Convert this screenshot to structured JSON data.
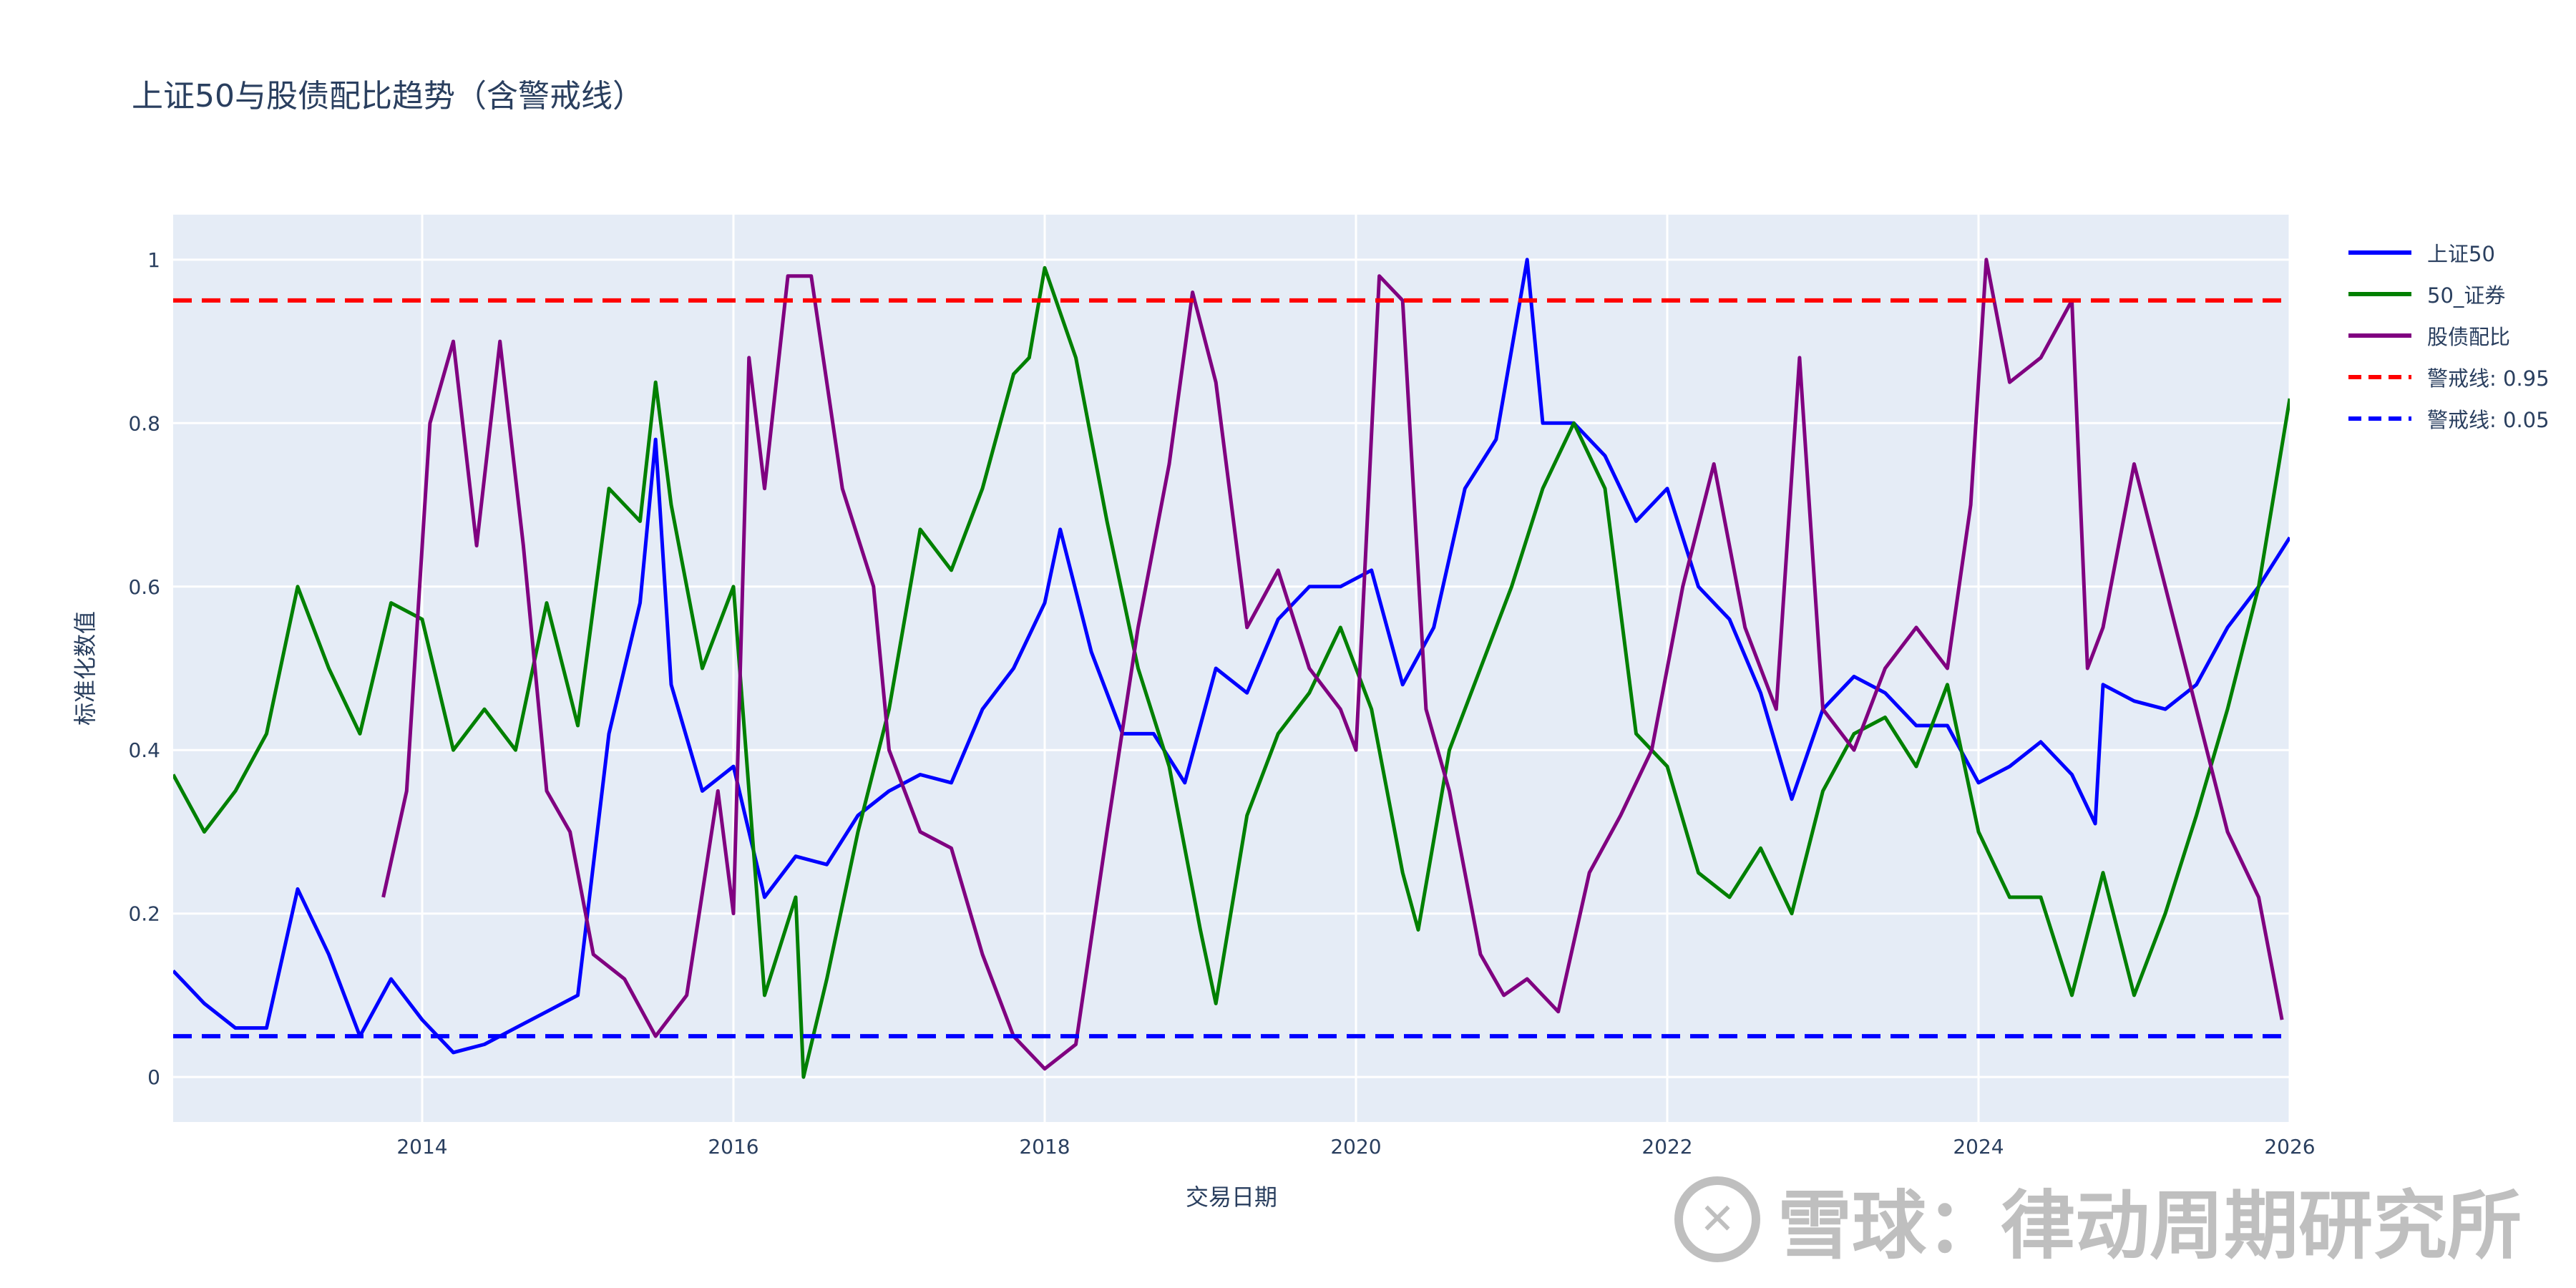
{
  "chart_data": {
    "type": "line",
    "title": "上证50与股债配比趋势（含警戒线）",
    "xlabel": "交易日期",
    "ylabel": "标准化数值",
    "xlim": [
      2012.4,
      2026.0
    ],
    "ylim": [
      -0.055,
      1.055
    ],
    "xticks": [
      2014,
      2016,
      2018,
      2020,
      2022,
      2024,
      2026
    ],
    "yticks": [
      0,
      0.2,
      0.4,
      0.6,
      0.8,
      1
    ],
    "ytick_labels": [
      "0",
      "0.2",
      "0.4",
      "0.6",
      "0.8",
      "1"
    ],
    "grid": true,
    "legend_position": "right",
    "series": [
      {
        "name": "上证50",
        "color": "#0000ff",
        "x": [
          2012.4,
          2012.6,
          2012.8,
          2013.0,
          2013.2,
          2013.4,
          2013.6,
          2013.8,
          2014.0,
          2014.2,
          2014.4,
          2014.6,
          2014.8,
          2015.0,
          2015.2,
          2015.4,
          2015.5,
          2015.6,
          2015.8,
          2016.0,
          2016.2,
          2016.4,
          2016.6,
          2016.8,
          2017.0,
          2017.2,
          2017.4,
          2017.6,
          2017.8,
          2018.0,
          2018.1,
          2018.3,
          2018.5,
          2018.7,
          2018.9,
          2019.1,
          2019.3,
          2019.5,
          2019.7,
          2019.9,
          2020.1,
          2020.3,
          2020.5,
          2020.7,
          2020.9,
          2021.1,
          2021.2,
          2021.4,
          2021.6,
          2021.8,
          2022.0,
          2022.2,
          2022.4,
          2022.6,
          2022.8,
          2023.0,
          2023.2,
          2023.4,
          2023.6,
          2023.8,
          2024.0,
          2024.2,
          2024.4,
          2024.6,
          2024.75,
          2024.8,
          2025.0,
          2025.2,
          2025.4,
          2025.6,
          2025.8,
          2026.0
        ],
        "values": [
          0.13,
          0.09,
          0.06,
          0.06,
          0.23,
          0.15,
          0.05,
          0.12,
          0.07,
          0.03,
          0.04,
          0.06,
          0.08,
          0.1,
          0.42,
          0.58,
          0.78,
          0.48,
          0.35,
          0.38,
          0.22,
          0.27,
          0.26,
          0.32,
          0.35,
          0.37,
          0.36,
          0.45,
          0.5,
          0.58,
          0.67,
          0.52,
          0.42,
          0.42,
          0.36,
          0.5,
          0.47,
          0.56,
          0.6,
          0.6,
          0.62,
          0.48,
          0.55,
          0.72,
          0.78,
          1.0,
          0.8,
          0.8,
          0.76,
          0.68,
          0.72,
          0.6,
          0.56,
          0.47,
          0.34,
          0.45,
          0.49,
          0.47,
          0.43,
          0.43,
          0.36,
          0.38,
          0.41,
          0.37,
          0.31,
          0.48,
          0.46,
          0.45,
          0.48,
          0.55,
          0.6,
          0.66
        ]
      },
      {
        "name": "50_证券",
        "color": "#008000",
        "x": [
          2012.4,
          2012.6,
          2012.8,
          2013.0,
          2013.2,
          2013.4,
          2013.6,
          2013.8,
          2014.0,
          2014.2,
          2014.4,
          2014.6,
          2014.8,
          2015.0,
          2015.2,
          2015.4,
          2015.5,
          2015.6,
          2015.8,
          2016.0,
          2016.2,
          2016.4,
          2016.45,
          2016.6,
          2016.8,
          2017.0,
          2017.2,
          2017.4,
          2017.6,
          2017.8,
          2017.9,
          2018.0,
          2018.2,
          2018.4,
          2018.6,
          2018.8,
          2019.0,
          2019.1,
          2019.3,
          2019.5,
          2019.7,
          2019.9,
          2020.1,
          2020.3,
          2020.4,
          2020.6,
          2020.8,
          2021.0,
          2021.2,
          2021.4,
          2021.6,
          2021.8,
          2022.0,
          2022.2,
          2022.4,
          2022.6,
          2022.8,
          2023.0,
          2023.2,
          2023.4,
          2023.6,
          2023.8,
          2024.0,
          2024.2,
          2024.4,
          2024.6,
          2024.8,
          2025.0,
          2025.2,
          2025.4,
          2025.6,
          2025.8,
          2026.0
        ],
        "values": [
          0.37,
          0.3,
          0.35,
          0.42,
          0.6,
          0.5,
          0.42,
          0.58,
          0.56,
          0.4,
          0.45,
          0.4,
          0.58,
          0.43,
          0.72,
          0.68,
          0.85,
          0.7,
          0.5,
          0.6,
          0.1,
          0.22,
          0.0,
          0.12,
          0.3,
          0.45,
          0.67,
          0.62,
          0.72,
          0.86,
          0.88,
          0.99,
          0.88,
          0.68,
          0.5,
          0.38,
          0.18,
          0.09,
          0.32,
          0.42,
          0.47,
          0.55,
          0.45,
          0.25,
          0.18,
          0.4,
          0.5,
          0.6,
          0.72,
          0.8,
          0.72,
          0.42,
          0.38,
          0.25,
          0.22,
          0.28,
          0.2,
          0.35,
          0.42,
          0.44,
          0.38,
          0.48,
          0.3,
          0.22,
          0.22,
          0.1,
          0.25,
          0.1,
          0.2,
          0.32,
          0.45,
          0.6,
          0.83
        ]
      },
      {
        "name": "股债配比",
        "color": "#800080",
        "x": [
          2013.75,
          2013.9,
          2014.05,
          2014.2,
          2014.35,
          2014.5,
          2014.65,
          2014.8,
          2014.95,
          2015.1,
          2015.3,
          2015.5,
          2015.7,
          2015.9,
          2016.0,
          2016.1,
          2016.2,
          2016.35,
          2016.5,
          2016.7,
          2016.9,
          2017.0,
          2017.2,
          2017.4,
          2017.6,
          2017.8,
          2018.0,
          2018.2,
          2018.4,
          2018.6,
          2018.8,
          2018.95,
          2019.1,
          2019.3,
          2019.5,
          2019.7,
          2019.9,
          2020.0,
          2020.15,
          2020.3,
          2020.45,
          2020.6,
          2020.8,
          2020.95,
          2021.1,
          2021.3,
          2021.5,
          2021.7,
          2021.9,
          2022.1,
          2022.3,
          2022.5,
          2022.7,
          2022.85,
          2023.0,
          2023.2,
          2023.4,
          2023.6,
          2023.8,
          2023.95,
          2024.05,
          2024.2,
          2024.4,
          2024.6,
          2024.7,
          2024.8,
          2025.0,
          2025.2,
          2025.4,
          2025.6,
          2025.8,
          2025.95
        ],
        "values": [
          0.22,
          0.35,
          0.8,
          0.9,
          0.65,
          0.9,
          0.65,
          0.35,
          0.3,
          0.15,
          0.12,
          0.05,
          0.1,
          0.35,
          0.2,
          0.88,
          0.72,
          0.98,
          0.98,
          0.72,
          0.6,
          0.4,
          0.3,
          0.28,
          0.15,
          0.05,
          0.01,
          0.04,
          0.3,
          0.55,
          0.75,
          0.96,
          0.85,
          0.55,
          0.62,
          0.5,
          0.45,
          0.4,
          0.98,
          0.95,
          0.45,
          0.35,
          0.15,
          0.1,
          0.12,
          0.08,
          0.25,
          0.32,
          0.4,
          0.6,
          0.75,
          0.55,
          0.45,
          0.88,
          0.45,
          0.4,
          0.5,
          0.55,
          0.5,
          0.7,
          1.0,
          0.85,
          0.88,
          0.95,
          0.5,
          0.55,
          0.75,
          0.6,
          0.45,
          0.3,
          0.22,
          0.07
        ]
      },
      {
        "name": "警戒线: 0.95",
        "color": "#ff0000",
        "dash": true,
        "x": [
          2012.4,
          2026.0
        ],
        "values": [
          0.95,
          0.95
        ]
      },
      {
        "name": "警戒线: 0.05",
        "color": "#0000ff",
        "dash": true,
        "x": [
          2012.4,
          2026.0
        ],
        "values": [
          0.05,
          0.05
        ]
      }
    ]
  },
  "colors": {
    "plot_background": "#e5ecf6",
    "grid": "#ffffff",
    "text": "#2a3f5f"
  },
  "watermark": {
    "logo_icon": "xueqiu-logo-icon",
    "text": "雪球：律动周期研究所"
  }
}
